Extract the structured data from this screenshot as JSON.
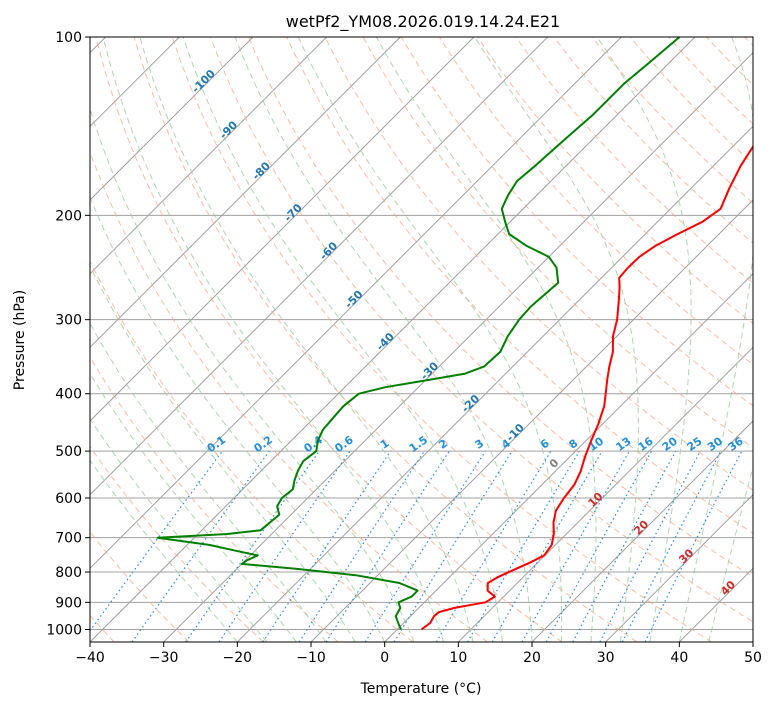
{
  "chart_data": {
    "type": "line",
    "title": "wetPf2_YM08.2026.019.14.24.E21",
    "xlabel": "Temperature (°C)",
    "ylabel": "Pressure (hPa)",
    "xlim": [
      -40,
      50
    ],
    "ylim": [
      1050,
      100
    ],
    "y_scale": "log",
    "x_ticks": [
      -40,
      -30,
      -20,
      -10,
      0,
      10,
      20,
      30,
      40,
      50
    ],
    "x_tick_labels": [
      "−40",
      "−30",
      "−20",
      "−10",
      "0",
      "10",
      "20",
      "30",
      "40",
      "50"
    ],
    "y_ticks": [
      1000,
      900,
      800,
      700,
      600,
      500,
      400,
      300,
      200,
      100
    ],
    "y_tick_labels": [
      "1000",
      "900",
      "800",
      "700",
      "600",
      "500",
      "400",
      "300",
      "200",
      "100"
    ],
    "skew": 45,
    "grid": true,
    "colors": {
      "temperature": "#ff0000",
      "dewpoint": "#008000",
      "isotherm": "#a0a0a0",
      "dry_adiabat": "#f4a582",
      "moist_adiabat": "#99cc99",
      "mixing_ratio": "#1f8fe0",
      "isotherm_label": "#1f77b4",
      "warm_label": "#d62728",
      "zero_label": "#808080"
    },
    "series": [
      {
        "key": "temperature",
        "points": [
          [
            1000,
            3.3
          ],
          [
            975,
            3.6
          ],
          [
            950,
            3.2
          ],
          [
            935,
            3.3
          ],
          [
            920,
            4.8
          ],
          [
            910,
            6.5
          ],
          [
            900,
            8.3
          ],
          [
            880,
            8.8
          ],
          [
            860,
            7.0
          ],
          [
            835,
            6.0
          ],
          [
            815,
            6.6
          ],
          [
            790,
            7.9
          ],
          [
            770,
            9.0
          ],
          [
            750,
            9.9
          ],
          [
            720,
            9.5
          ],
          [
            690,
            8.3
          ],
          [
            660,
            6.7
          ],
          [
            630,
            5.4
          ],
          [
            600,
            4.8
          ],
          [
            570,
            4.4
          ],
          [
            540,
            3.4
          ],
          [
            510,
            2.0
          ],
          [
            480,
            0.7
          ],
          [
            450,
            -0.6
          ],
          [
            420,
            -2.2
          ],
          [
            400,
            -3.7
          ],
          [
            380,
            -5.3
          ],
          [
            360,
            -6.9
          ],
          [
            340,
            -8.4
          ],
          [
            320,
            -10.5
          ],
          [
            300,
            -12.2
          ],
          [
            280,
            -14.4
          ],
          [
            265,
            -16.2
          ],
          [
            255,
            -17.6
          ],
          [
            245,
            -17.8
          ],
          [
            235,
            -17.7
          ],
          [
            225,
            -17.0
          ],
          [
            215,
            -15.6
          ],
          [
            205,
            -13.9
          ],
          [
            195,
            -13.2
          ],
          [
            180,
            -14.8
          ],
          [
            165,
            -16.3
          ],
          [
            150,
            -17.5
          ],
          [
            135,
            -19.1
          ],
          [
            120,
            -20.0
          ],
          [
            112,
            -21.6
          ],
          [
            106,
            -23.3
          ],
          [
            100,
            -24.6
          ]
        ]
      },
      {
        "key": "dewpoint",
        "points": [
          [
            1000,
            0.5
          ],
          [
            980,
            -0.5
          ],
          [
            950,
            -2.0
          ],
          [
            920,
            -2.5
          ],
          [
            900,
            -3.5
          ],
          [
            880,
            -2.5
          ],
          [
            860,
            -2.5
          ],
          [
            835,
            -6.0
          ],
          [
            810,
            -13.0
          ],
          [
            790,
            -22.0
          ],
          [
            775,
            -30.0
          ],
          [
            765,
            -29.8
          ],
          [
            750,
            -29.0
          ],
          [
            735,
            -33.0
          ],
          [
            720,
            -37.0
          ],
          [
            700,
            -45.0
          ],
          [
            690,
            -36.0
          ],
          [
            680,
            -32.0
          ],
          [
            660,
            -31.8
          ],
          [
            640,
            -31.6
          ],
          [
            620,
            -33.0
          ],
          [
            600,
            -33.5
          ],
          [
            580,
            -33.2
          ],
          [
            560,
            -34.2
          ],
          [
            540,
            -35.0
          ],
          [
            520,
            -35.6
          ],
          [
            500,
            -35.2
          ],
          [
            480,
            -36.4
          ],
          [
            460,
            -37.2
          ],
          [
            440,
            -37.4
          ],
          [
            420,
            -37.6
          ],
          [
            400,
            -37.2
          ],
          [
            390,
            -34.5
          ],
          [
            380,
            -30.0
          ],
          [
            370,
            -25.5
          ],
          [
            360,
            -23.9
          ],
          [
            340,
            -23.7
          ],
          [
            320,
            -24.8
          ],
          [
            300,
            -25.5
          ],
          [
            285,
            -25.7
          ],
          [
            260,
            -25.2
          ],
          [
            245,
            -27.5
          ],
          [
            235,
            -30.0
          ],
          [
            225,
            -34.6
          ],
          [
            215,
            -38.5
          ],
          [
            205,
            -40.7
          ],
          [
            195,
            -42.9
          ],
          [
            185,
            -43.9
          ],
          [
            175,
            -44.6
          ],
          [
            165,
            -44.2
          ],
          [
            150,
            -43.8
          ],
          [
            135,
            -43.3
          ],
          [
            120,
            -43.3
          ],
          [
            110,
            -42.7
          ],
          [
            100,
            -42.1
          ]
        ]
      }
    ],
    "isotherm_labels": [
      "-100",
      "-90",
      "-80",
      "-70",
      "-60",
      "-50",
      "-40",
      "-30",
      "-20",
      "-10"
    ],
    "isotherm_label_values": [
      -100,
      -90,
      -80,
      -70,
      -60,
      -50,
      -40,
      -30,
      -20,
      -10
    ],
    "warm_labels": [
      "10",
      "20",
      "30",
      "40"
    ],
    "warm_label_values": [
      10,
      20,
      30,
      40
    ],
    "zero_label": "0",
    "mixing_ratio_labels": [
      "0.1",
      "0.2",
      "0.4",
      "0.6",
      "1",
      "1.5",
      "2",
      "3",
      "4",
      "6",
      "8",
      "10",
      "13",
      "16",
      "20",
      "25",
      "30",
      "36"
    ],
    "mixing_ratio_values": [
      0.1,
      0.2,
      0.4,
      0.6,
      1,
      1.5,
      2,
      3,
      4,
      6,
      8,
      10,
      13,
      16,
      20,
      25,
      30,
      36
    ]
  }
}
